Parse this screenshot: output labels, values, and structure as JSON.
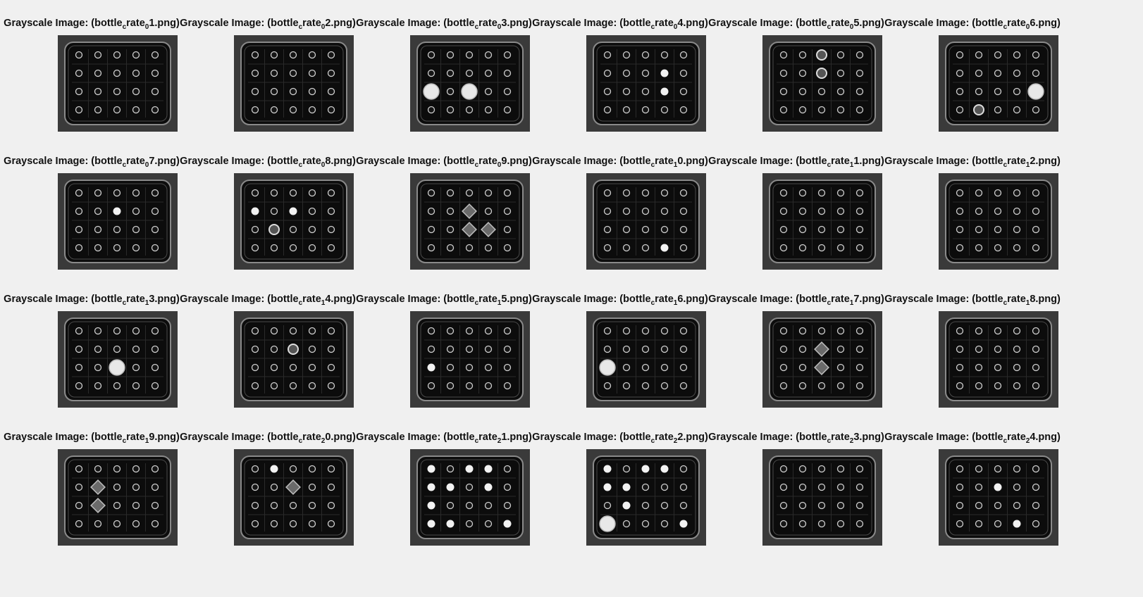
{
  "figure": {
    "background": "#f0f0f0",
    "image_background": "#3a3a3a",
    "crate_color": "#0c0c0c",
    "rim_color": "#8a8a8a"
  },
  "subplots": [
    {
      "prefix": "Grayscale Image: (bottle",
      "sub1": "c",
      "mid": "rate",
      "sub2": "0",
      "suffix": "1.png)",
      "highlights": []
    },
    {
      "prefix": "Grayscale Image: (bottle",
      "sub1": "c",
      "mid": "rate",
      "sub2": "0",
      "suffix": "2.png)",
      "highlights": []
    },
    {
      "prefix": "Grayscale Image: (bottle",
      "sub1": "c",
      "mid": "rate",
      "sub2": "0",
      "suffix": "3.png)",
      "highlights": [
        {
          "row": 2,
          "col": 0,
          "kind": "big"
        },
        {
          "row": 2,
          "col": 2,
          "kind": "big"
        }
      ]
    },
    {
      "prefix": "Grayscale Image: (bottle",
      "sub1": "c",
      "mid": "rate",
      "sub2": "0",
      "suffix": "4.png)",
      "highlights": [
        {
          "row": 1,
          "col": 3,
          "kind": "cap"
        },
        {
          "row": 2,
          "col": 3,
          "kind": "cap"
        }
      ]
    },
    {
      "prefix": "Grayscale Image: (bottle",
      "sub1": "c",
      "mid": "rate",
      "sub2": "0",
      "suffix": "5.png)",
      "highlights": [
        {
          "row": 0,
          "col": 2,
          "kind": "ring"
        },
        {
          "row": 1,
          "col": 2,
          "kind": "ring"
        }
      ]
    },
    {
      "prefix": "Grayscale Image: (bottle",
      "sub1": "c",
      "mid": "rate",
      "sub2": "0",
      "suffix": "6.png)",
      "highlights": [
        {
          "row": 2,
          "col": 4,
          "kind": "big"
        },
        {
          "row": 3,
          "col": 1,
          "kind": "ring"
        }
      ]
    },
    {
      "prefix": "Grayscale Image: (bottle",
      "sub1": "c",
      "mid": "rate",
      "sub2": "0",
      "suffix": "7.png)",
      "highlights": [
        {
          "row": 1,
          "col": 2,
          "kind": "cap"
        }
      ]
    },
    {
      "prefix": "Grayscale Image: (bottle",
      "sub1": "c",
      "mid": "rate",
      "sub2": "0",
      "suffix": "8.png)",
      "highlights": [
        {
          "row": 1,
          "col": 0,
          "kind": "cap"
        },
        {
          "row": 1,
          "col": 2,
          "kind": "cap"
        },
        {
          "row": 2,
          "col": 1,
          "kind": "ring"
        }
      ]
    },
    {
      "prefix": "Grayscale Image: (bottle",
      "sub1": "c",
      "mid": "rate",
      "sub2": "0",
      "suffix": "9.png)",
      "highlights": [
        {
          "row": 1,
          "col": 2,
          "kind": "diamond"
        },
        {
          "row": 2,
          "col": 2,
          "kind": "diamond"
        },
        {
          "row": 2,
          "col": 3,
          "kind": "diamond"
        }
      ]
    },
    {
      "prefix": "Grayscale Image: (bottle",
      "sub1": "c",
      "mid": "rate",
      "sub2": "1",
      "suffix": "0.png)",
      "highlights": [
        {
          "row": 3,
          "col": 3,
          "kind": "cap"
        }
      ]
    },
    {
      "prefix": "Grayscale Image: (bottle",
      "sub1": "c",
      "mid": "rate",
      "sub2": "1",
      "suffix": "1.png)",
      "highlights": []
    },
    {
      "prefix": "Grayscale Image: (bottle",
      "sub1": "c",
      "mid": "rate",
      "sub2": "1",
      "suffix": "2.png)",
      "highlights": []
    },
    {
      "prefix": "Grayscale Image: (bottle",
      "sub1": "c",
      "mid": "rate",
      "sub2": "1",
      "suffix": "3.png)",
      "highlights": [
        {
          "row": 2,
          "col": 2,
          "kind": "big"
        }
      ]
    },
    {
      "prefix": "Grayscale Image: (bottle",
      "sub1": "c",
      "mid": "rate",
      "sub2": "1",
      "suffix": "4.png)",
      "highlights": [
        {
          "row": 1,
          "col": 2,
          "kind": "ring"
        }
      ]
    },
    {
      "prefix": "Grayscale Image: (bottle",
      "sub1": "c",
      "mid": "rate",
      "sub2": "1",
      "suffix": "5.png)",
      "highlights": [
        {
          "row": 2,
          "col": 0,
          "kind": "cap"
        }
      ]
    },
    {
      "prefix": "Grayscale Image: (bottle",
      "sub1": "c",
      "mid": "rate",
      "sub2": "1",
      "suffix": "6.png)",
      "highlights": [
        {
          "row": 2,
          "col": 0,
          "kind": "big"
        }
      ]
    },
    {
      "prefix": "Grayscale Image: (bottle",
      "sub1": "c",
      "mid": "rate",
      "sub2": "1",
      "suffix": "7.png)",
      "highlights": [
        {
          "row": 1,
          "col": 2,
          "kind": "diamond"
        },
        {
          "row": 2,
          "col": 2,
          "kind": "diamond"
        }
      ]
    },
    {
      "prefix": "Grayscale Image: (bottle",
      "sub1": "c",
      "mid": "rate",
      "sub2": "1",
      "suffix": "8.png)",
      "highlights": []
    },
    {
      "prefix": "Grayscale Image: (bottle",
      "sub1": "c",
      "mid": "rate",
      "sub2": "1",
      "suffix": "9.png)",
      "highlights": [
        {
          "row": 1,
          "col": 1,
          "kind": "diamond"
        },
        {
          "row": 2,
          "col": 1,
          "kind": "diamond"
        }
      ]
    },
    {
      "prefix": "Grayscale Image: (bottle",
      "sub1": "c",
      "mid": "rate",
      "sub2": "2",
      "suffix": "0.png)",
      "highlights": [
        {
          "row": 0,
          "col": 1,
          "kind": "cap"
        },
        {
          "row": 1,
          "col": 2,
          "kind": "diamond"
        }
      ]
    },
    {
      "prefix": "Grayscale Image: (bottle",
      "sub1": "c",
      "mid": "rate",
      "sub2": "2",
      "suffix": "1.png)",
      "highlights": [
        {
          "row": 0,
          "col": 0,
          "kind": "cap"
        },
        {
          "row": 0,
          "col": 2,
          "kind": "cap"
        },
        {
          "row": 0,
          "col": 3,
          "kind": "cap"
        },
        {
          "row": 1,
          "col": 0,
          "kind": "cap"
        },
        {
          "row": 1,
          "col": 1,
          "kind": "cap"
        },
        {
          "row": 1,
          "col": 3,
          "kind": "cap"
        },
        {
          "row": 2,
          "col": 0,
          "kind": "cap"
        },
        {
          "row": 3,
          "col": 0,
          "kind": "cap"
        },
        {
          "row": 3,
          "col": 1,
          "kind": "cap"
        },
        {
          "row": 3,
          "col": 4,
          "kind": "cap"
        }
      ]
    },
    {
      "prefix": "Grayscale Image: (bottle",
      "sub1": "c",
      "mid": "rate",
      "sub2": "2",
      "suffix": "2.png)",
      "highlights": [
        {
          "row": 0,
          "col": 0,
          "kind": "cap"
        },
        {
          "row": 0,
          "col": 2,
          "kind": "cap"
        },
        {
          "row": 0,
          "col": 3,
          "kind": "cap"
        },
        {
          "row": 1,
          "col": 0,
          "kind": "cap"
        },
        {
          "row": 1,
          "col": 1,
          "kind": "cap"
        },
        {
          "row": 2,
          "col": 1,
          "kind": "cap"
        },
        {
          "row": 3,
          "col": 0,
          "kind": "big"
        },
        {
          "row": 3,
          "col": 4,
          "kind": "cap"
        }
      ]
    },
    {
      "prefix": "Grayscale Image: (bottle",
      "sub1": "c",
      "mid": "rate",
      "sub2": "2",
      "suffix": "3.png)",
      "highlights": []
    },
    {
      "prefix": "Grayscale Image: (bottle",
      "sub1": "c",
      "mid": "rate",
      "sub2": "2",
      "suffix": "4.png)",
      "highlights": [
        {
          "row": 1,
          "col": 2,
          "kind": "cap"
        },
        {
          "row": 3,
          "col": 3,
          "kind": "cap"
        }
      ]
    }
  ]
}
